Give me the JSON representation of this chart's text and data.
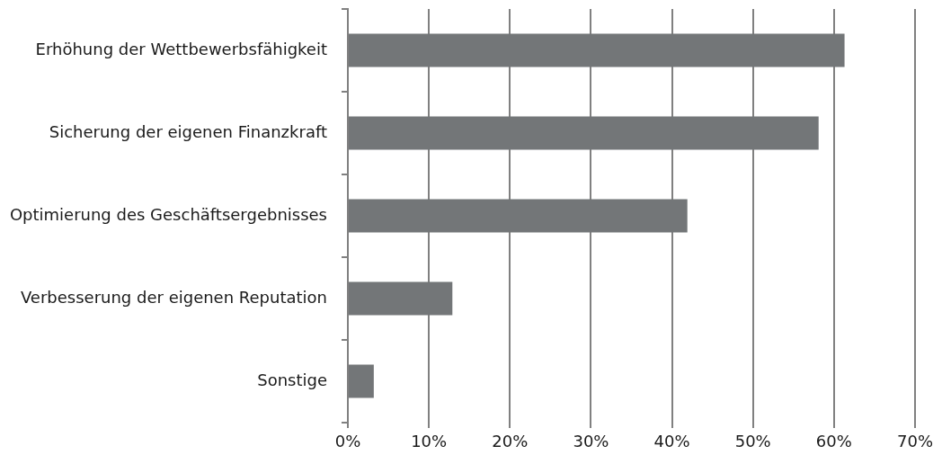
{
  "chart_data": {
    "type": "bar",
    "orientation": "horizontal",
    "categories": [
      "Erhöhung der Wettbewerbsfähigkeit",
      "Sicherung der eigenen Finanzkraft",
      "Optimierung des Geschäftsergebnisses",
      "Verbesserung der eigenen Reputation",
      "Sonstige"
    ],
    "values": [
      61.3,
      58.1,
      41.9,
      12.9,
      3.2
    ],
    "color": "#737678",
    "xlim": [
      0,
      70
    ],
    "xticks": [
      {
        "value": 0,
        "label": "0%"
      },
      {
        "value": 10,
        "label": "10%"
      },
      {
        "value": 20,
        "label": "20%"
      },
      {
        "value": 30,
        "label": "30%"
      },
      {
        "value": 40,
        "label": "40%"
      },
      {
        "value": 50,
        "label": "50%"
      },
      {
        "value": 60,
        "label": "60%"
      },
      {
        "value": 70,
        "label": "70%"
      }
    ],
    "grid": "x",
    "legend": false
  }
}
